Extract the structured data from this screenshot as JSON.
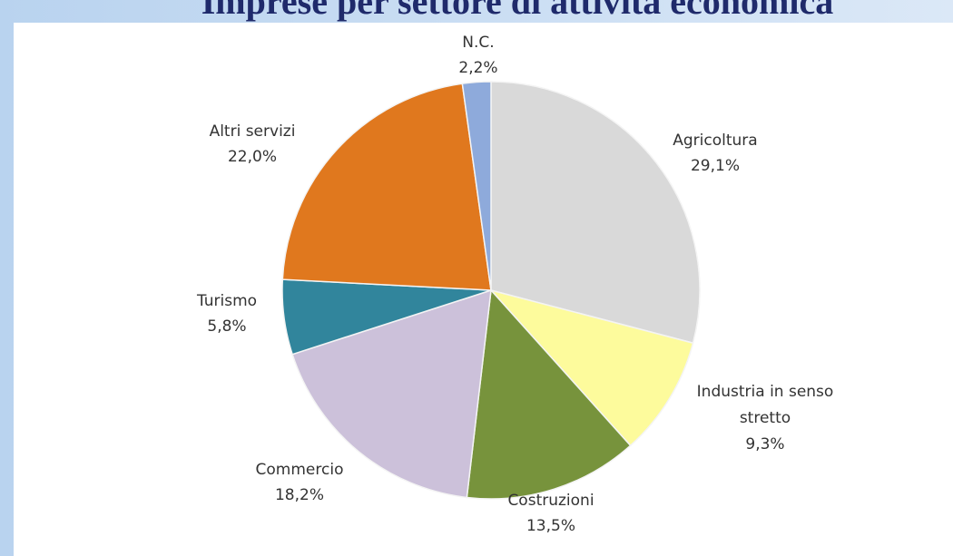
{
  "chart_data": {
    "type": "pie",
    "title": "Imprese per settore di attività economica",
    "categories": [
      "Agricoltura",
      "Industria in senso stretto",
      "Costruzioni",
      "Commercio",
      "Turismo",
      "Altri servizi",
      "N.C."
    ],
    "values": [
      29.1,
      9.3,
      13.5,
      18.2,
      5.8,
      22.0,
      2.2
    ],
    "value_labels": [
      "29,1%",
      "9,3%",
      "13,5%",
      "18,2%",
      "5,8%",
      "22,0%",
      "2,2%"
    ],
    "colors": [
      "#d9d9d9",
      "#fdfb9c",
      "#77933c",
      "#ccc1da",
      "#31859c",
      "#e0781e",
      "#8eaadb"
    ]
  }
}
